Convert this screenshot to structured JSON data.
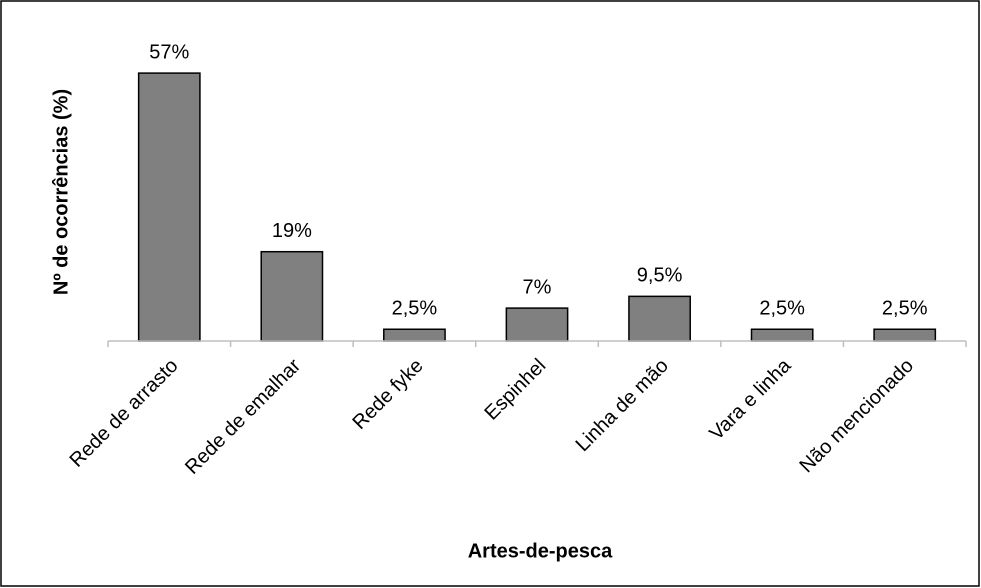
{
  "chart_data": {
    "type": "bar",
    "x_label": "Artes-de-pesca",
    "y_label": "Nº de ocorrências (%)",
    "categories": [
      "Rede de arrasto",
      "Rede de emalhar",
      "Rede fyke",
      "Espinhel",
      "Linha de mão",
      "Vara e linha",
      "Não mencionado"
    ],
    "values": [
      57,
      19,
      2.5,
      7,
      9.5,
      2.5,
      2.5
    ],
    "value_labels": [
      "57%",
      "19%",
      "2,5%",
      "7%",
      "9,5%",
      "2,5%",
      "2,5%"
    ],
    "color": "#808080",
    "ylim": [
      0,
      60
    ]
  }
}
